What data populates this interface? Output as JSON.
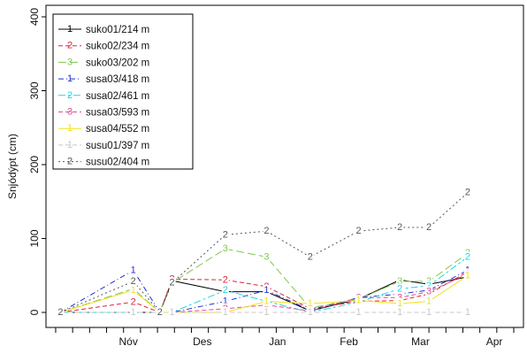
{
  "chart_data": {
    "type": "line",
    "title": "",
    "xlabel": "",
    "ylabel": "Snjódýpt (cm)",
    "ylim": [
      0,
      400
    ],
    "y_ticks": [
      0,
      100,
      200,
      300,
      400
    ],
    "x_range": [
      "2013-10-13",
      "2014-04-28"
    ],
    "x_tick_labels": [
      {
        "date": "2013-11-01",
        "label": "Nóv"
      },
      {
        "date": "2013-12-01",
        "label": "Des"
      },
      {
        "date": "2014-01-01",
        "label": "Jan"
      },
      {
        "date": "2014-02-01",
        "label": "Feb"
      },
      {
        "date": "2014-03-01",
        "label": "Mar"
      },
      {
        "date": "2014-04-01",
        "label": "Apr"
      }
    ],
    "legend_position": "top-left",
    "series": [
      {
        "name": "suko01/214 m",
        "marker": "1",
        "color": "#000000",
        "dash": "solid",
        "points": [
          [
            "2013-10-19",
            0
          ],
          [
            "2013-11-18",
            0
          ],
          [
            "2013-11-29",
            0
          ],
          [
            "2013-12-04",
            43
          ],
          [
            "2013-12-26",
            28
          ],
          [
            "2014-01-12",
            28
          ],
          [
            "2014-01-30",
            2
          ],
          [
            "2014-02-19",
            18
          ],
          [
            "2014-03-08",
            44
          ],
          [
            "2014-03-20",
            38
          ],
          [
            "2014-04-05",
            48
          ]
        ]
      },
      {
        "name": "suko02/234 m",
        "marker": "2",
        "color": "#e0243a",
        "dash": "dash",
        "points": [
          [
            "2013-10-19",
            0
          ],
          [
            "2013-11-18",
            14
          ],
          [
            "2013-11-29",
            0
          ],
          [
            "2013-12-04",
            45
          ],
          [
            "2013-12-26",
            44
          ],
          [
            "2014-01-12",
            35
          ],
          [
            "2014-01-30",
            5
          ],
          [
            "2014-02-19",
            15
          ],
          [
            "2014-03-08",
            16
          ],
          [
            "2014-03-20",
            25
          ],
          [
            "2014-04-05",
            55
          ]
        ]
      },
      {
        "name": "suko03/202 m",
        "marker": "3",
        "color": "#7ec850",
        "dash": "longdash",
        "points": [
          [
            "2013-10-19",
            0
          ],
          [
            "2013-11-18",
            32
          ],
          [
            "2013-11-29",
            0
          ],
          [
            "2013-12-04",
            40
          ],
          [
            "2013-12-26",
            86
          ],
          [
            "2014-01-12",
            75
          ],
          [
            "2014-01-30",
            6
          ],
          [
            "2014-02-19",
            18
          ],
          [
            "2014-03-08",
            42
          ],
          [
            "2014-03-20",
            42
          ],
          [
            "2014-04-05",
            80
          ]
        ]
      },
      {
        "name": "susa03/418 m",
        "marker": "1",
        "color": "#1e2fd0",
        "dash": "dashdot",
        "points": [
          [
            "2013-10-19",
            0
          ],
          [
            "2013-11-18",
            57
          ],
          [
            "2013-11-29",
            0
          ],
          [
            "2013-12-04",
            0
          ],
          [
            "2013-12-26",
            15
          ],
          [
            "2014-01-12",
            30
          ],
          [
            "2014-01-30",
            3
          ],
          [
            "2014-02-19",
            20
          ],
          [
            "2014-03-08",
            25
          ],
          [
            "2014-03-20",
            30
          ],
          [
            "2014-04-05",
            57
          ]
        ]
      },
      {
        "name": "susa02/461 m",
        "marker": "2",
        "color": "#22d4e4",
        "dash": "twodash",
        "points": [
          [
            "2013-10-19",
            0
          ],
          [
            "2013-11-18",
            0
          ],
          [
            "2013-11-29",
            0
          ],
          [
            "2013-12-04",
            0
          ],
          [
            "2013-12-26",
            30
          ],
          [
            "2014-01-12",
            15
          ],
          [
            "2014-01-30",
            0
          ],
          [
            "2014-02-19",
            14
          ],
          [
            "2014-03-08",
            32
          ],
          [
            "2014-03-20",
            36
          ],
          [
            "2014-04-05",
            75
          ]
        ]
      },
      {
        "name": "susa03/593 m",
        "marker": "3",
        "color": "#e04c96",
        "dash": "dash",
        "points": [
          [
            "2013-10-19",
            0
          ],
          [
            "2013-11-18",
            0
          ],
          [
            "2013-11-29",
            0
          ],
          [
            "2013-12-04",
            0
          ],
          [
            "2013-12-26",
            5
          ],
          [
            "2014-01-12",
            10
          ],
          [
            "2014-01-30",
            2
          ],
          [
            "2014-02-19",
            20
          ],
          [
            "2014-03-08",
            20
          ],
          [
            "2014-03-20",
            28
          ],
          [
            "2014-04-05",
            52
          ]
        ]
      },
      {
        "name": "susa04/552 m",
        "marker": "1",
        "color": "#f2e020",
        "dash": "solid",
        "points": [
          [
            "2013-10-19",
            0
          ],
          [
            "2013-11-18",
            30
          ],
          [
            "2013-11-29",
            0
          ],
          [
            "2013-12-04",
            0
          ],
          [
            "2013-12-26",
            0
          ],
          [
            "2014-01-12",
            15
          ],
          [
            "2014-01-30",
            12
          ],
          [
            "2014-02-19",
            16
          ],
          [
            "2014-03-08",
            12
          ],
          [
            "2014-03-20",
            15
          ],
          [
            "2014-04-05",
            50
          ]
        ]
      },
      {
        "name": "susu01/397 m",
        "marker": "1",
        "color": "#c8c8c8",
        "dash": "dash",
        "points": [
          [
            "2013-10-19",
            0
          ],
          [
            "2013-11-18",
            0
          ],
          [
            "2013-11-29",
            0
          ],
          [
            "2013-12-04",
            0
          ],
          [
            "2013-12-26",
            0
          ],
          [
            "2014-01-12",
            0
          ],
          [
            "2014-01-30",
            0
          ],
          [
            "2014-02-19",
            0
          ],
          [
            "2014-03-08",
            0
          ],
          [
            "2014-03-20",
            0
          ],
          [
            "2014-04-05",
            0
          ]
        ]
      },
      {
        "name": "susu02/404 m",
        "marker": "2",
        "color": "#555555",
        "dash": "dot",
        "points": [
          [
            "2013-10-19",
            0
          ],
          [
            "2013-11-18",
            42
          ],
          [
            "2013-11-29",
            0
          ],
          [
            "2013-12-04",
            40
          ],
          [
            "2013-12-26",
            105
          ],
          [
            "2014-01-12",
            110
          ],
          [
            "2014-01-30",
            75
          ],
          [
            "2014-02-19",
            110
          ],
          [
            "2014-03-08",
            115
          ],
          [
            "2014-03-20",
            115
          ],
          [
            "2014-04-05",
            162
          ]
        ]
      }
    ]
  }
}
